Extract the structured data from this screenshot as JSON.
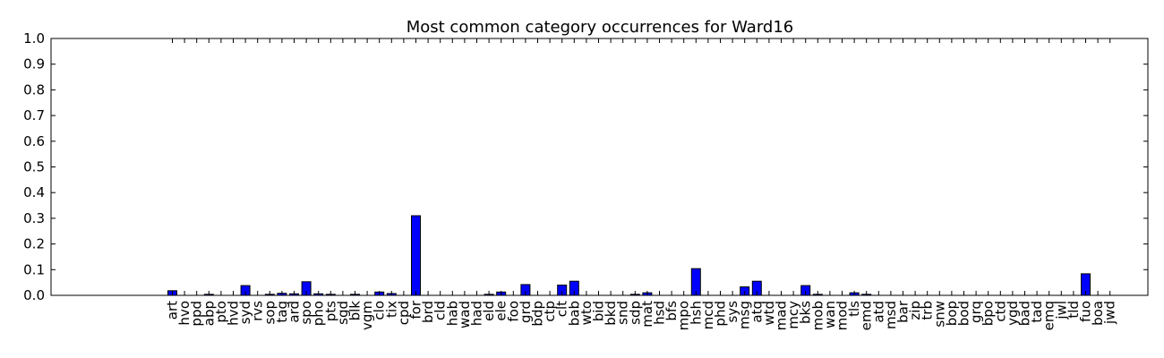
{
  "chart_data": {
    "type": "bar",
    "title": "Most common category occurrences for Ward16",
    "xlabel": "",
    "ylabel": "",
    "ylim": [
      0,
      1.0
    ],
    "yticks": [
      "0.0",
      "0.1",
      "0.2",
      "0.3",
      "0.4",
      "0.5",
      "0.6",
      "0.7",
      "0.8",
      "0.9",
      "1.0"
    ],
    "bar_color": "#0000ff",
    "grid": false,
    "categories": [
      "art",
      "hvo",
      "ppd",
      "abp",
      "pto",
      "hvd",
      "syd",
      "rvs",
      "sop",
      "tag",
      "ard",
      "spo",
      "pho",
      "pts",
      "sgd",
      "blk",
      "vgm",
      "clo",
      "tix",
      "cpd",
      "for",
      "brd",
      "cld",
      "hab",
      "wad",
      "had",
      "eld",
      "ele",
      "foo",
      "grd",
      "bdp",
      "ctp",
      "clt",
      "bab",
      "wto",
      "bid",
      "bkd",
      "snd",
      "sdp",
      "mat",
      "hsd",
      "bfs",
      "mpo",
      "hsh",
      "mcd",
      "phd",
      "sys",
      "msg",
      "atq",
      "wtd",
      "mad",
      "mcy",
      "bks",
      "mob",
      "wan",
      "mod",
      "tls",
      "emd",
      "atd",
      "msd",
      "bar",
      "zip",
      "trb",
      "snw",
      "bop",
      "bod",
      "grq",
      "bpo",
      "ctd",
      "ygd",
      "bad",
      "tad",
      "emq",
      "jwl",
      "tld",
      "fuo",
      "boa",
      "jwd"
    ],
    "values": [
      0.018,
      0.0,
      0.0,
      0.004,
      0.0,
      0.0,
      0.038,
      0.0,
      0.004,
      0.008,
      0.006,
      0.053,
      0.006,
      0.004,
      0.0,
      0.004,
      0.0,
      0.013,
      0.007,
      0.0,
      0.31,
      0.0,
      0.0,
      0.0,
      0.0,
      0.0,
      0.004,
      0.013,
      0.0,
      0.042,
      0.0,
      0.0,
      0.04,
      0.055,
      0.0,
      0.0,
      0.0,
      0.0,
      0.004,
      0.01,
      0.0,
      0.0,
      0.0,
      0.104,
      0.0,
      0.0,
      0.0,
      0.033,
      0.055,
      0.0,
      0.0,
      0.0,
      0.038,
      0.004,
      0.0,
      0.0,
      0.01,
      0.004,
      0.0,
      0.0,
      0.0,
      0.0,
      0.0,
      0.0,
      0.0,
      0.0,
      0.0,
      0.0,
      0.0,
      0.0,
      0.0,
      0.0,
      0.0,
      0.0,
      0.0,
      0.084,
      0.0,
      0.0
    ]
  }
}
